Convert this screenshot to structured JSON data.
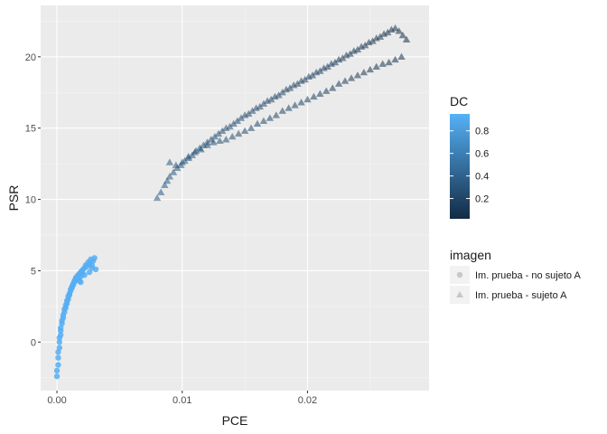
{
  "chart_data": {
    "type": "scatter",
    "title": "",
    "xlabel": "PCE",
    "ylabel": "PSR",
    "xlim": [
      -0.0013,
      0.0297
    ],
    "ylim": [
      -3.4,
      23.6
    ],
    "x_ticks": [
      {
        "value": 0.0,
        "label": "0.00"
      },
      {
        "value": 0.01,
        "label": "0.01"
      },
      {
        "value": 0.02,
        "label": "0.02"
      }
    ],
    "y_ticks": [
      {
        "value": 0,
        "label": "0"
      },
      {
        "value": 5,
        "label": "5"
      },
      {
        "value": 10,
        "label": "10"
      },
      {
        "value": 15,
        "label": "15"
      },
      {
        "value": 20,
        "label": "20"
      }
    ],
    "grid": true,
    "panel_color": "#EBEBEB",
    "color_legend": {
      "title": "DC",
      "low_color": "#132B43",
      "high_color": "#56B1F7",
      "range": [
        0.02,
        0.95
      ],
      "ticks": [
        {
          "value": 0.2,
          "label": "0.2"
        },
        {
          "value": 0.4,
          "label": "0.4"
        },
        {
          "value": 0.6,
          "label": "0.6"
        },
        {
          "value": 0.8,
          "label": "0.8"
        }
      ]
    },
    "shape_legend": {
      "title": "imagen",
      "entries": [
        {
          "label": "Im. prueba - no sujeto A",
          "shape": "circle"
        },
        {
          "label": "Im. prueba - sujeto A",
          "shape": "triangle"
        }
      ]
    },
    "series": [
      {
        "name": "Im. prueba - no sujeto A",
        "shape": "circle",
        "dc": 0.93,
        "x": [
          0.0,
          0.0,
          0.0001,
          0.0001,
          0.0001,
          0.0002,
          0.0002,
          0.0002,
          0.0003,
          0.0003,
          0.0003,
          0.0004,
          0.0004,
          0.0005,
          0.0005,
          0.0006,
          0.0006,
          0.0007,
          0.0007,
          0.0008,
          0.0008,
          0.0009,
          0.0009,
          0.001,
          0.001,
          0.0011,
          0.0011,
          0.0012,
          0.0012,
          0.0013,
          0.0013,
          0.0014,
          0.0014,
          0.0015,
          0.0015,
          0.0016,
          0.0016,
          0.0017,
          0.0017,
          0.0018,
          0.0018,
          0.0019,
          0.0019,
          0.002,
          0.002,
          0.0021,
          0.0022,
          0.0023,
          0.0024,
          0.0025,
          0.0026,
          0.0027,
          0.0028,
          0.0029,
          0.003,
          0.0031,
          0.0026,
          0.0022,
          0.0028,
          0.0019
        ],
        "y": [
          -2.4,
          -2.0,
          -1.6,
          -1.1,
          -0.7,
          -0.4,
          0.0,
          0.3,
          0.5,
          0.8,
          1.0,
          1.3,
          1.5,
          1.7,
          1.9,
          2.1,
          2.3,
          2.4,
          2.6,
          2.7,
          2.9,
          3.0,
          3.2,
          3.3,
          3.4,
          3.6,
          3.7,
          3.8,
          3.9,
          4.0,
          4.1,
          4.2,
          4.3,
          4.4,
          4.5,
          4.6,
          4.4,
          4.7,
          4.5,
          4.8,
          4.3,
          4.9,
          4.6,
          5.0,
          4.8,
          5.1,
          5.2,
          5.4,
          5.3,
          5.6,
          5.5,
          5.8,
          5.4,
          5.7,
          5.9,
          5.1,
          4.9,
          4.7,
          5.2,
          4.2
        ]
      },
      {
        "name": "Im. prueba - sujeto A",
        "shape": "triangle",
        "dc_range": [
          0.05,
          0.35
        ],
        "x": [
          0.008,
          0.0083,
          0.0086,
          0.0088,
          0.009,
          0.0093,
          0.0096,
          0.0099,
          0.0102,
          0.0105,
          0.0108,
          0.0111,
          0.0114,
          0.0117,
          0.012,
          0.0123,
          0.0126,
          0.0129,
          0.0132,
          0.0135,
          0.0138,
          0.0141,
          0.0144,
          0.0147,
          0.015,
          0.0153,
          0.0156,
          0.0159,
          0.0162,
          0.0165,
          0.0168,
          0.0171,
          0.0174,
          0.0177,
          0.018,
          0.0183,
          0.0186,
          0.0189,
          0.0192,
          0.0195,
          0.0198,
          0.0201,
          0.0204,
          0.0207,
          0.021,
          0.0213,
          0.0216,
          0.0219,
          0.0222,
          0.0225,
          0.0228,
          0.0231,
          0.0234,
          0.0237,
          0.024,
          0.0243,
          0.0246,
          0.0249,
          0.0252,
          0.0255,
          0.0258,
          0.0261,
          0.0264,
          0.0267,
          0.027,
          0.0273,
          0.0276,
          0.0279,
          0.009,
          0.0095,
          0.01,
          0.0105,
          0.011,
          0.0115,
          0.012,
          0.0125,
          0.013,
          0.0135,
          0.014,
          0.0145,
          0.015,
          0.0155,
          0.016,
          0.0165,
          0.017,
          0.0175,
          0.018,
          0.0185,
          0.019,
          0.0195,
          0.02,
          0.0205,
          0.021,
          0.0215,
          0.022,
          0.0225,
          0.023,
          0.0235,
          0.024,
          0.0245,
          0.025,
          0.0255,
          0.026,
          0.0265,
          0.027,
          0.0275
        ],
        "y": [
          10.1,
          10.5,
          11.0,
          11.3,
          11.6,
          11.9,
          12.2,
          12.4,
          12.7,
          12.9,
          13.1,
          13.4,
          13.6,
          13.8,
          14.0,
          14.2,
          14.4,
          14.6,
          14.8,
          15.0,
          15.1,
          15.3,
          15.5,
          15.7,
          15.9,
          16.0,
          16.2,
          16.4,
          16.5,
          16.7,
          16.9,
          17.0,
          17.2,
          17.3,
          17.5,
          17.7,
          17.8,
          18.0,
          18.1,
          18.3,
          18.4,
          18.6,
          18.7,
          18.9,
          19.0,
          19.2,
          19.3,
          19.5,
          19.6,
          19.8,
          19.9,
          20.1,
          20.2,
          20.4,
          20.5,
          20.7,
          20.8,
          21.0,
          21.1,
          21.3,
          21.4,
          21.6,
          21.7,
          21.9,
          22.0,
          21.8,
          21.5,
          21.2,
          12.6,
          12.4,
          12.6,
          13.0,
          13.3,
          13.5,
          13.8,
          14.0,
          14.1,
          14.2,
          14.4,
          14.6,
          14.8,
          15.0,
          15.3,
          15.5,
          15.7,
          15.9,
          16.2,
          16.4,
          16.6,
          16.8,
          17.0,
          17.2,
          17.4,
          17.6,
          17.8,
          18.1,
          18.3,
          18.5,
          18.7,
          18.9,
          19.1,
          19.3,
          19.5,
          19.6,
          19.8,
          20.0
        ]
      }
    ]
  }
}
